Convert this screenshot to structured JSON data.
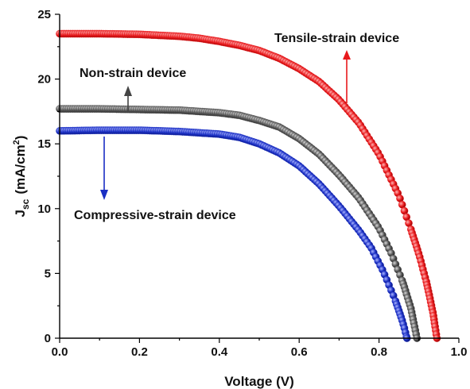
{
  "chart_data": {
    "type": "scatter",
    "title": "",
    "xlabel": "Voltage (V)",
    "ylabel": {
      "main": "J",
      "sub": "sc",
      "units_pre": "(mA/cm",
      "units_sup": "2",
      "units_post": ")"
    },
    "xlim": [
      0.0,
      1.0
    ],
    "ylim": [
      0,
      25
    ],
    "x_ticks": [
      "0.0",
      "0.2",
      "0.4",
      "0.6",
      "0.8",
      "1.0"
    ],
    "y_ticks": [
      "0",
      "5",
      "10",
      "15",
      "20",
      "25"
    ],
    "grid": false,
    "legend": "none",
    "series": [
      {
        "name": "Tensile-strain device",
        "color": "#e8191c",
        "points": [
          [
            0.0,
            23.5
          ],
          [
            0.1,
            23.5
          ],
          [
            0.2,
            23.45
          ],
          [
            0.3,
            23.3
          ],
          [
            0.35,
            23.15
          ],
          [
            0.4,
            22.9
          ],
          [
            0.45,
            22.6
          ],
          [
            0.5,
            22.2
          ],
          [
            0.55,
            21.6
          ],
          [
            0.6,
            20.8
          ],
          [
            0.65,
            19.8
          ],
          [
            0.7,
            18.4
          ],
          [
            0.75,
            16.6
          ],
          [
            0.8,
            14.2
          ],
          [
            0.85,
            11.0
          ],
          [
            0.88,
            8.4
          ],
          [
            0.9,
            6.5
          ],
          [
            0.92,
            4.2
          ],
          [
            0.935,
            2.0
          ],
          [
            0.945,
            0.0
          ]
        ]
      },
      {
        "name": "Non-strain device",
        "color": "#555555",
        "points": [
          [
            0.0,
            17.7
          ],
          [
            0.1,
            17.7
          ],
          [
            0.2,
            17.65
          ],
          [
            0.3,
            17.6
          ],
          [
            0.4,
            17.4
          ],
          [
            0.45,
            17.2
          ],
          [
            0.5,
            16.8
          ],
          [
            0.55,
            16.3
          ],
          [
            0.6,
            15.4
          ],
          [
            0.65,
            14.2
          ],
          [
            0.7,
            12.6
          ],
          [
            0.75,
            10.8
          ],
          [
            0.8,
            8.5
          ],
          [
            0.83,
            6.6
          ],
          [
            0.86,
            4.3
          ],
          [
            0.88,
            2.3
          ],
          [
            0.895,
            0.0
          ]
        ]
      },
      {
        "name": "Compressive-strain device",
        "color": "#1a2fc4",
        "points": [
          [
            0.0,
            16.0
          ],
          [
            0.1,
            16.05
          ],
          [
            0.2,
            16.05
          ],
          [
            0.3,
            15.95
          ],
          [
            0.4,
            15.75
          ],
          [
            0.45,
            15.5
          ],
          [
            0.5,
            15.0
          ],
          [
            0.55,
            14.3
          ],
          [
            0.6,
            13.3
          ],
          [
            0.65,
            11.9
          ],
          [
            0.7,
            10.2
          ],
          [
            0.75,
            8.3
          ],
          [
            0.78,
            7.0
          ],
          [
            0.81,
            5.2
          ],
          [
            0.84,
            3.0
          ],
          [
            0.86,
            1.2
          ],
          [
            0.87,
            0.0
          ]
        ]
      }
    ],
    "annotations": [
      {
        "text": "Tensile-strain device",
        "color": "#e8191c",
        "arrow": "up"
      },
      {
        "text": "Non-strain device",
        "color": "#555555",
        "arrow": "up"
      },
      {
        "text": "Compressive-strain device",
        "color": "#1a2fc4",
        "arrow": "down"
      }
    ]
  }
}
